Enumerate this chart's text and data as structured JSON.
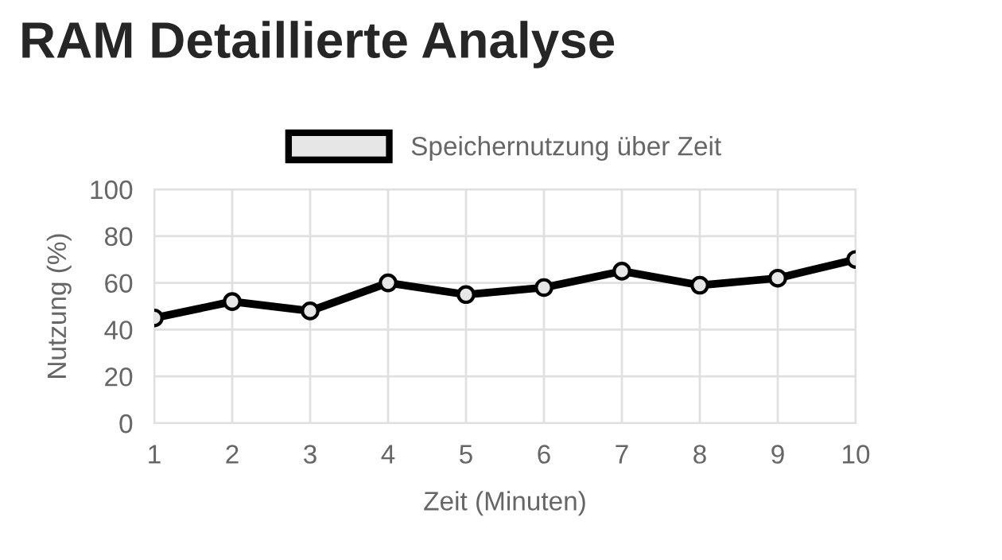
{
  "chart_data": {
    "type": "line",
    "title": "RAM Detaillierte Analyse",
    "xlabel": "Zeit (Minuten)",
    "ylabel": "Nutzung (%)",
    "categories": [
      "1",
      "2",
      "3",
      "4",
      "5",
      "6",
      "7",
      "8",
      "9",
      "10"
    ],
    "series": [
      {
        "name": "Speichernutzung über Zeit",
        "color": "#000000",
        "values": [
          45,
          52,
          48,
          60,
          55,
          58,
          65,
          59,
          62,
          70
        ]
      }
    ],
    "ylim": [
      0,
      100
    ],
    "yticks": [
      0,
      20,
      40,
      60,
      80,
      100
    ],
    "grid": true,
    "legend": "top",
    "marker": "circle",
    "line_style": "solid"
  }
}
